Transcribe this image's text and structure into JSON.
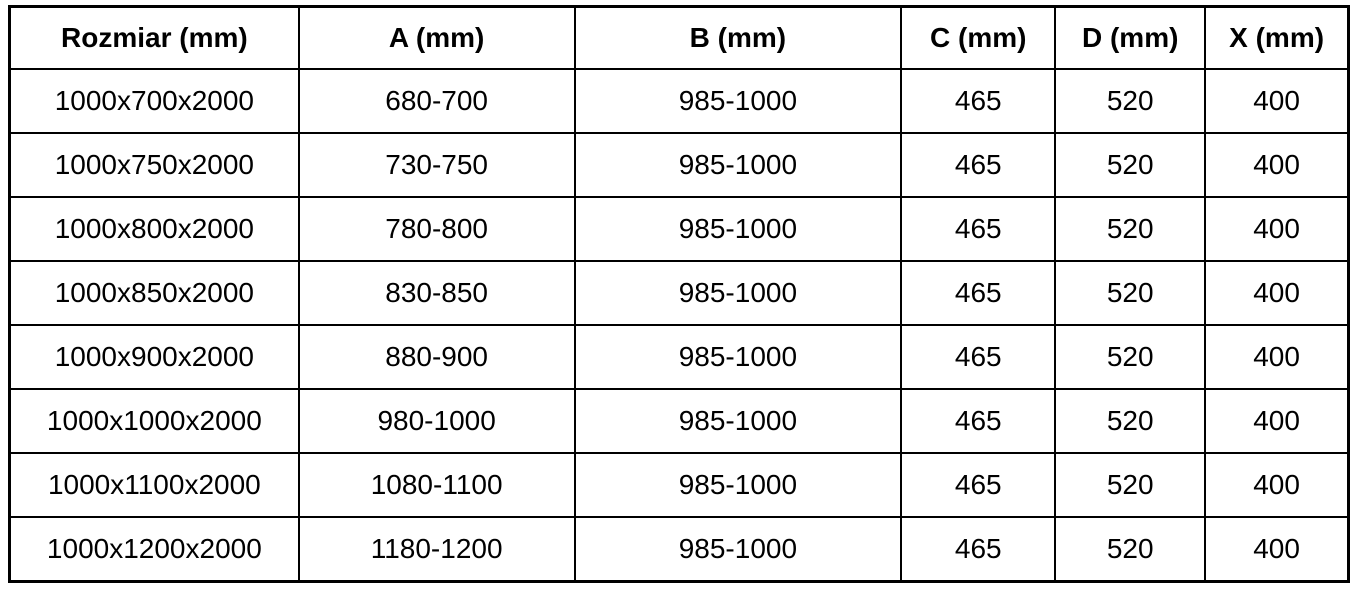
{
  "table": {
    "columns": [
      "Rozmiar (mm)",
      "A (mm)",
      "B (mm)",
      "C (mm)",
      "D (mm)",
      "X (mm)"
    ],
    "rows": [
      [
        "1000x700x2000",
        "680-700",
        "985-1000",
        "465",
        "520",
        "400"
      ],
      [
        "1000x750x2000",
        "730-750",
        "985-1000",
        "465",
        "520",
        "400"
      ],
      [
        "1000x800x2000",
        "780-800",
        "985-1000",
        "465",
        "520",
        "400"
      ],
      [
        "1000x850x2000",
        "830-850",
        "985-1000",
        "465",
        "520",
        "400"
      ],
      [
        "1000x900x2000",
        "880-900",
        "985-1000",
        "465",
        "520",
        "400"
      ],
      [
        "1000x1000x2000",
        "980-1000",
        "985-1000",
        "465",
        "520",
        "400"
      ],
      [
        "1000x1100x2000",
        "1080-1100",
        "985-1000",
        "465",
        "520",
        "400"
      ],
      [
        "1000x1200x2000",
        "1180-1200",
        "985-1000",
        "465",
        "520",
        "400"
      ]
    ],
    "border_color": "#000000",
    "text_color": "#000000",
    "background_color": "#ffffff"
  }
}
